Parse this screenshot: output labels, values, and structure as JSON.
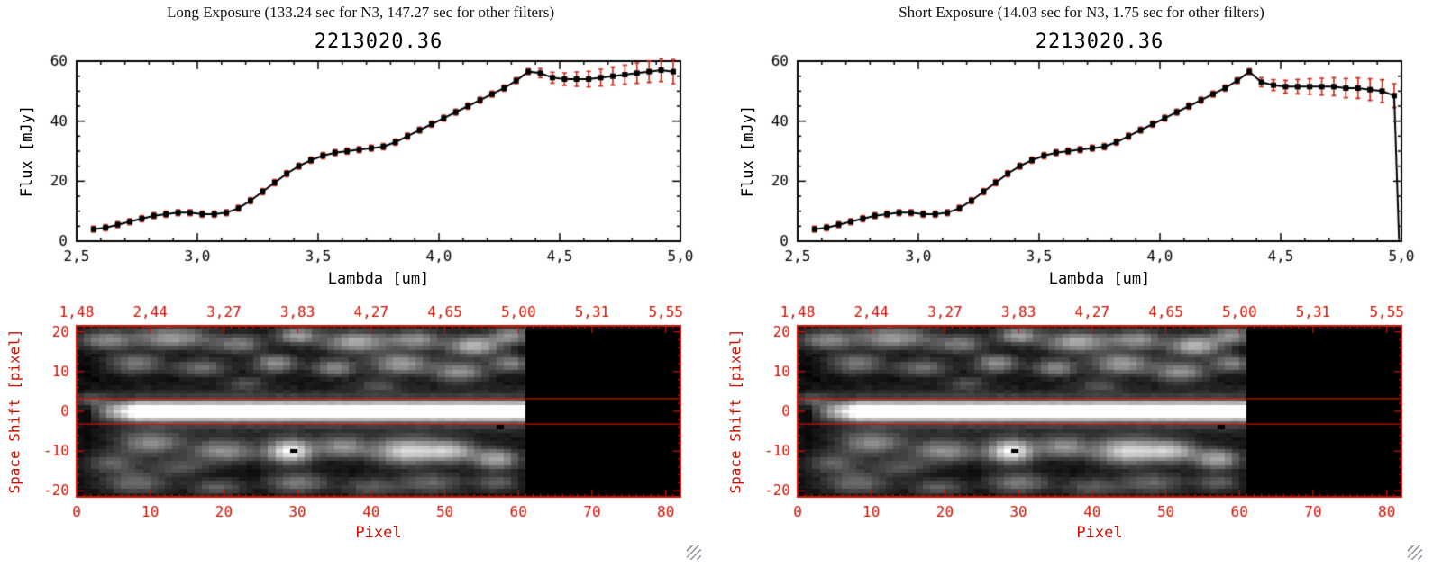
{
  "colors": {
    "background": "#ffffff",
    "axis_black": "#000000",
    "accent_red": "#cc1100",
    "error_red": "#cc2a1a",
    "grip_gray": "#8a95a0"
  },
  "panels": [
    {
      "header": "Long Exposure (133.24 sec for N3, 147.27 sec for other filters)",
      "spectrum_index": 0,
      "image_index": 1
    },
    {
      "header": "Short Exposure (14.03 sec for N3, 1.75 sec for other filters)",
      "spectrum_index": 2,
      "image_index": 3
    }
  ],
  "chart_data": [
    {
      "type": "line",
      "title": "2213020.36",
      "xlabel": "Lambda [um]",
      "ylabel": "Flux [mJy]",
      "xlim": [
        2.5,
        5.0
      ],
      "ylim": [
        0,
        60
      ],
      "xticks": {
        "values": [
          2.5,
          3.0,
          3.5,
          4.0,
          4.5,
          5.0
        ],
        "labels": [
          "2,5",
          "3,0",
          "3,5",
          "4,0",
          "4,5",
          "5,0"
        ]
      },
      "yticks": {
        "values": [
          0,
          20,
          40,
          60
        ],
        "labels": [
          "0",
          "20",
          "40",
          "60"
        ]
      },
      "minor_x": 0.1,
      "minor_y": 5,
      "marker": "square",
      "drop_to_zero_at_end": false,
      "x": [
        2.57,
        2.62,
        2.67,
        2.72,
        2.77,
        2.82,
        2.87,
        2.92,
        2.97,
        3.02,
        3.07,
        3.12,
        3.17,
        3.22,
        3.27,
        3.32,
        3.37,
        3.42,
        3.47,
        3.52,
        3.57,
        3.62,
        3.67,
        3.72,
        3.77,
        3.82,
        3.87,
        3.92,
        3.97,
        4.02,
        4.07,
        4.12,
        4.17,
        4.22,
        4.27,
        4.32,
        4.37,
        4.42,
        4.47,
        4.52,
        4.57,
        4.62,
        4.67,
        4.72,
        4.77,
        4.82,
        4.87,
        4.92,
        4.97
      ],
      "y": [
        4,
        4.5,
        5.5,
        6.5,
        7.5,
        8.5,
        9,
        9.5,
        9.5,
        9,
        9,
        9.5,
        11,
        13.5,
        16.5,
        19.5,
        22.5,
        25,
        27,
        28.5,
        29.5,
        30,
        30.5,
        31,
        31.5,
        33,
        35,
        37,
        39,
        41,
        43,
        45,
        47,
        49,
        51,
        53.5,
        56.5,
        56,
        54.5,
        54,
        54,
        54,
        54.5,
        55,
        55.5,
        56,
        56.5,
        57,
        56.5
      ],
      "yerr": [
        1,
        1,
        1,
        1,
        1,
        1,
        1,
        1,
        1,
        1,
        1,
        1,
        1,
        1,
        1,
        1,
        1,
        1,
        1,
        1,
        1,
        1,
        1,
        1,
        1,
        1,
        1,
        1,
        1,
        1,
        1,
        1,
        1,
        1,
        1,
        1,
        1,
        1.5,
        1.8,
        2.1,
        2.4,
        2.6,
        2.8,
        3,
        3.2,
        3.4,
        3.6,
        3.8,
        4
      ]
    },
    {
      "type": "heatmap",
      "xlabel": "Pixel",
      "ylabel": "Space Shift [pixel]",
      "xlim": [
        0,
        82
      ],
      "ylim": [
        -21.5,
        21.5
      ],
      "xticks": {
        "values": [
          0,
          10,
          20,
          30,
          40,
          50,
          60,
          70,
          80
        ],
        "labels": [
          "0",
          "10",
          "20",
          "30",
          "40",
          "50",
          "60",
          "70",
          "80"
        ]
      },
      "yticks": {
        "values": [
          -20,
          -10,
          0,
          10,
          20
        ],
        "labels": [
          "-20",
          "-10",
          "0",
          "10",
          "20"
        ]
      },
      "top_axis": {
        "values": [
          0,
          10,
          20,
          30,
          40,
          50,
          60,
          70,
          80
        ],
        "labels": [
          "1,48",
          "2,44",
          "3,27",
          "3,83",
          "4,27",
          "4,65",
          "5,00",
          "5,31",
          "5,55"
        ]
      },
      "aperture_lines": [
        3.2,
        -3.2
      ],
      "signal_x_range": [
        1.5,
        61
      ],
      "band": {
        "amp": 0.98,
        "y_sigma": 1.5,
        "halo_amp": 0.3,
        "halo_sigma": 3.2,
        "ramp_length": 7
      },
      "blobs": [
        [
          4,
          18,
          2.5,
          1.6,
          0.45
        ],
        [
          13,
          18.5,
          3.5,
          1.8,
          0.55
        ],
        [
          22,
          17,
          2.5,
          1.6,
          0.4
        ],
        [
          30,
          19,
          2,
          1.4,
          0.55
        ],
        [
          38,
          17.5,
          3,
          1.8,
          0.6
        ],
        [
          46,
          18,
          2.5,
          1.6,
          0.5
        ],
        [
          54,
          16.5,
          2.5,
          1.8,
          0.65
        ],
        [
          59,
          19,
          1.8,
          1.4,
          0.5
        ],
        [
          8,
          12,
          2.5,
          1.7,
          0.4
        ],
        [
          17,
          11,
          2.5,
          1.5,
          0.35
        ],
        [
          27,
          12,
          2,
          1.5,
          0.5
        ],
        [
          35,
          11,
          2,
          1.5,
          0.45
        ],
        [
          44,
          12,
          2.8,
          1.8,
          0.55
        ],
        [
          52,
          10,
          2.5,
          1.7,
          0.5
        ],
        [
          59,
          12,
          1.8,
          1.4,
          0.45
        ],
        [
          23,
          7,
          2,
          1.2,
          0.22
        ],
        [
          41,
          6.5,
          2,
          1.2,
          0.2
        ],
        [
          10,
          -8,
          3,
          2,
          0.45
        ],
        [
          20,
          -10,
          3,
          2,
          0.5
        ],
        [
          29,
          -10,
          2.2,
          2,
          0.95
        ],
        [
          36,
          -9,
          2.2,
          1.8,
          0.5
        ],
        [
          45,
          -10,
          3.5,
          2.2,
          0.8
        ],
        [
          51,
          -10,
          2.2,
          1.8,
          0.55
        ],
        [
          57,
          -12,
          2.2,
          1.8,
          0.6
        ],
        [
          5,
          -13,
          2.5,
          1.8,
          0.3
        ],
        [
          14,
          -14,
          2.5,
          1.6,
          0.25
        ],
        [
          8,
          -18,
          3,
          1.8,
          0.35
        ],
        [
          19,
          -19,
          2.5,
          1.4,
          0.3
        ],
        [
          30,
          -18,
          2.8,
          1.8,
          0.4
        ],
        [
          40,
          -19,
          2.5,
          1.6,
          0.28
        ],
        [
          48,
          -18,
          3,
          1.8,
          0.32
        ],
        [
          57,
          -18,
          2,
          1.4,
          0.3
        ],
        [
          2,
          3,
          1.5,
          1.2,
          0.3
        ]
      ],
      "dark_cells": [
        [
          29,
          -10
        ],
        [
          57,
          -4
        ]
      ],
      "noise_seed": 7,
      "noise_amp": 0.05
    },
    {
      "type": "line",
      "title": "2213020.36",
      "xlabel": "Lambda [um]",
      "ylabel": "Flux [mJy]",
      "xlim": [
        2.5,
        5.0
      ],
      "ylim": [
        0,
        60
      ],
      "xticks": {
        "values": [
          2.5,
          3.0,
          3.5,
          4.0,
          4.5,
          5.0
        ],
        "labels": [
          "2,5",
          "3,0",
          "3,5",
          "4,0",
          "4,5",
          "5,0"
        ]
      },
      "yticks": {
        "values": [
          0,
          20,
          40,
          60
        ],
        "labels": [
          "0",
          "20",
          "40",
          "60"
        ]
      },
      "minor_x": 0.1,
      "minor_y": 5,
      "marker": "square",
      "drop_to_zero_at_end": true,
      "x": [
        2.57,
        2.62,
        2.67,
        2.72,
        2.77,
        2.82,
        2.87,
        2.92,
        2.97,
        3.02,
        3.07,
        3.12,
        3.17,
        3.22,
        3.27,
        3.32,
        3.37,
        3.42,
        3.47,
        3.52,
        3.57,
        3.62,
        3.67,
        3.72,
        3.77,
        3.82,
        3.87,
        3.92,
        3.97,
        4.02,
        4.07,
        4.12,
        4.17,
        4.22,
        4.27,
        4.32,
        4.37,
        4.42,
        4.47,
        4.52,
        4.57,
        4.62,
        4.67,
        4.72,
        4.77,
        4.82,
        4.87,
        4.92,
        4.97
      ],
      "y": [
        4,
        4.5,
        5.5,
        6.5,
        7.5,
        8.5,
        9,
        9.5,
        9.5,
        9,
        9,
        9.5,
        11,
        13.5,
        16.5,
        19.5,
        22.5,
        25,
        27,
        28.5,
        29.5,
        30,
        30.5,
        31,
        31.5,
        33,
        35,
        37,
        39,
        41,
        43,
        45,
        47,
        49,
        51,
        53.5,
        56.5,
        53,
        52,
        51.5,
        51.5,
        51.5,
        51.5,
        51.5,
        51,
        51,
        50.5,
        50,
        48.5
      ],
      "yerr": [
        1,
        1,
        1,
        1,
        1,
        1,
        1,
        1,
        1,
        1,
        1,
        1,
        1,
        1,
        1,
        1,
        1,
        1,
        1,
        1,
        1,
        1,
        1,
        1,
        1,
        1,
        1,
        1,
        1,
        1,
        1,
        1,
        1,
        1,
        1,
        1,
        1,
        1.5,
        1.8,
        2.1,
        2.4,
        2.6,
        2.8,
        3,
        3.2,
        3.4,
        3.6,
        3.8,
        4
      ]
    },
    {
      "type": "heatmap",
      "xlabel": "Pixel",
      "ylabel": "Space Shift [pixel]",
      "xlim": [
        0,
        82
      ],
      "ylim": [
        -21.5,
        21.5
      ],
      "xticks": {
        "values": [
          0,
          10,
          20,
          30,
          40,
          50,
          60,
          70,
          80
        ],
        "labels": [
          "0",
          "10",
          "20",
          "30",
          "40",
          "50",
          "60",
          "70",
          "80"
        ]
      },
      "yticks": {
        "values": [
          -20,
          -10,
          0,
          10,
          20
        ],
        "labels": [
          "-20",
          "-10",
          "0",
          "10",
          "20"
        ]
      },
      "top_axis": {
        "values": [
          0,
          10,
          20,
          30,
          40,
          50,
          60,
          70,
          80
        ],
        "labels": [
          "1,48",
          "2,44",
          "3,27",
          "3,83",
          "4,27",
          "4,65",
          "5,00",
          "5,31",
          "5,55"
        ]
      },
      "aperture_lines": [
        3.2,
        -3.2
      ],
      "signal_x_range": [
        1.5,
        61
      ],
      "band": {
        "amp": 0.98,
        "y_sigma": 1.5,
        "halo_amp": 0.3,
        "halo_sigma": 3.2,
        "ramp_length": 7
      },
      "blobs": [
        [
          4,
          18,
          2.5,
          1.6,
          0.45
        ],
        [
          13,
          18.5,
          3.5,
          1.8,
          0.55
        ],
        [
          22,
          17,
          2.5,
          1.6,
          0.4
        ],
        [
          30,
          19,
          2,
          1.4,
          0.55
        ],
        [
          38,
          17.5,
          3,
          1.8,
          0.6
        ],
        [
          46,
          18,
          2.5,
          1.6,
          0.5
        ],
        [
          54,
          16.5,
          2.5,
          1.8,
          0.65
        ],
        [
          59,
          19,
          1.8,
          1.4,
          0.5
        ],
        [
          8,
          12,
          2.5,
          1.7,
          0.4
        ],
        [
          17,
          11,
          2.5,
          1.5,
          0.35
        ],
        [
          27,
          12,
          2,
          1.5,
          0.5
        ],
        [
          35,
          11,
          2,
          1.5,
          0.45
        ],
        [
          44,
          12,
          2.8,
          1.8,
          0.55
        ],
        [
          52,
          10,
          2.5,
          1.7,
          0.5
        ],
        [
          59,
          12,
          1.8,
          1.4,
          0.45
        ],
        [
          23,
          7,
          2,
          1.2,
          0.22
        ],
        [
          41,
          6.5,
          2,
          1.2,
          0.2
        ],
        [
          10,
          -8,
          3,
          2,
          0.45
        ],
        [
          20,
          -10,
          3,
          2,
          0.5
        ],
        [
          29,
          -10,
          2.2,
          2,
          0.95
        ],
        [
          36,
          -9,
          2.2,
          1.8,
          0.5
        ],
        [
          45,
          -10,
          3.5,
          2.2,
          0.8
        ],
        [
          51,
          -10,
          2.2,
          1.8,
          0.55
        ],
        [
          57,
          -12,
          2.2,
          1.8,
          0.6
        ],
        [
          5,
          -13,
          2.5,
          1.8,
          0.3
        ],
        [
          14,
          -14,
          2.5,
          1.6,
          0.25
        ],
        [
          8,
          -18,
          3,
          1.8,
          0.35
        ],
        [
          19,
          -19,
          2.5,
          1.4,
          0.3
        ],
        [
          30,
          -18,
          2.8,
          1.8,
          0.4
        ],
        [
          40,
          -19,
          2.5,
          1.6,
          0.28
        ],
        [
          48,
          -18,
          3,
          1.8,
          0.32
        ],
        [
          57,
          -18,
          2,
          1.4,
          0.3
        ],
        [
          2,
          3,
          1.5,
          1.2,
          0.3
        ]
      ],
      "dark_cells": [
        [
          29,
          -10
        ],
        [
          57,
          -4
        ]
      ],
      "noise_seed": 7,
      "noise_amp": 0.05
    }
  ]
}
